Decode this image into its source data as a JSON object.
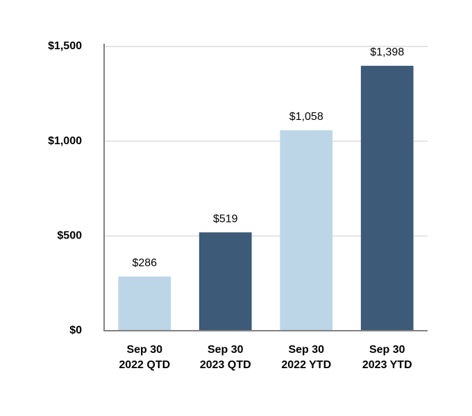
{
  "chart_data": {
    "type": "bar",
    "categories": [
      [
        "Sep 30",
        "2022 QTD"
      ],
      [
        "Sep 30",
        "2023 QTD"
      ],
      [
        "Sep 30",
        "2022 YTD"
      ],
      [
        "Sep 30",
        "2023 YTD"
      ]
    ],
    "values": [
      286,
      519,
      1058,
      1398
    ],
    "value_labels": [
      "$286",
      "$519",
      "$1,058",
      "$1,398"
    ],
    "colors": [
      "#bcd6e8",
      "#3d5a78",
      "#bcd6e8",
      "#3d5a78"
    ],
    "ylim": [
      0,
      1500
    ],
    "yticks": [
      {
        "value": 0,
        "label": "$0"
      },
      {
        "value": 500,
        "label": "$500"
      },
      {
        "value": 1000,
        "label": "$1,000"
      },
      {
        "value": 1500,
        "label": "$1,500"
      }
    ],
    "grid": true
  }
}
